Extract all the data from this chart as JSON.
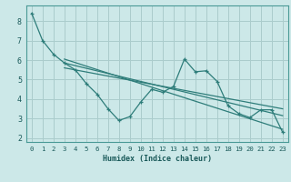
{
  "bg_color": "#cce8e8",
  "grid_color": "#aacccc",
  "line_color": "#2e7d7a",
  "xlabel": "Humidex (Indice chaleur)",
  "xlim": [
    -0.5,
    23.5
  ],
  "ylim": [
    1.8,
    8.8
  ],
  "yticks": [
    2,
    3,
    4,
    5,
    6,
    7,
    8
  ],
  "xticks": [
    0,
    1,
    2,
    3,
    4,
    5,
    6,
    7,
    8,
    9,
    10,
    11,
    12,
    13,
    14,
    15,
    16,
    17,
    18,
    19,
    20,
    21,
    22,
    23
  ],
  "series": [
    [
      0,
      8.4
    ],
    [
      1,
      7.0
    ],
    [
      2,
      6.3
    ],
    [
      3,
      5.85
    ],
    [
      4,
      5.5
    ],
    [
      5,
      4.8
    ],
    [
      6,
      4.25
    ],
    [
      7,
      3.5
    ],
    [
      8,
      2.9
    ],
    [
      9,
      3.1
    ],
    [
      10,
      3.85
    ],
    [
      11,
      4.5
    ],
    [
      12,
      4.35
    ],
    [
      13,
      4.65
    ],
    [
      14,
      6.05
    ],
    [
      15,
      5.4
    ],
    [
      16,
      5.45
    ],
    [
      17,
      4.9
    ],
    [
      18,
      3.65
    ],
    [
      19,
      3.25
    ],
    [
      20,
      3.05
    ],
    [
      21,
      3.45
    ],
    [
      22,
      3.45
    ],
    [
      23,
      2.3
    ]
  ],
  "line2": [
    [
      3,
      6.05
    ],
    [
      23,
      2.45
    ]
  ],
  "line3": [
    [
      3,
      5.85
    ],
    [
      23,
      3.15
    ]
  ],
  "line4": [
    [
      3,
      5.6
    ],
    [
      23,
      3.5
    ]
  ]
}
